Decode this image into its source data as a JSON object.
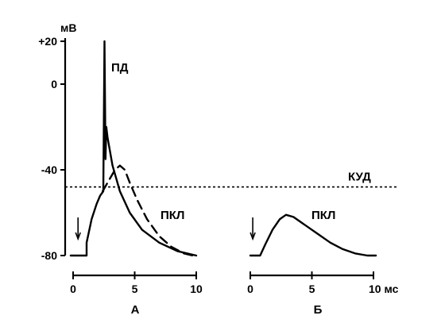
{
  "chart_data": [
    {
      "panel": "A",
      "type": "line",
      "ylabel": "мВ",
      "y_ticks": [
        "+20",
        "0",
        "-40",
        "-80"
      ],
      "x_ticks": [
        "0",
        "5",
        "10"
      ],
      "xlabel": "",
      "panel_label": "А",
      "ylim": [
        -80,
        20
      ],
      "xlim": [
        0,
        10
      ],
      "threshold": {
        "label": "КУД",
        "value": -48
      },
      "stimulus_time": 0.4,
      "series": [
        {
          "name": "ПД",
          "style": "solid",
          "x": [
            -0.2,
            1.1,
            1.1,
            1.5,
            1.9,
            2.2,
            2.45,
            2.55,
            2.63,
            2.7,
            2.8,
            3.2,
            3.8,
            4.6,
            5.6,
            7.0,
            8.5,
            10.0
          ],
          "y": [
            -80,
            -80,
            -74,
            -63,
            -56,
            -52,
            -50,
            20,
            -35,
            -20,
            -25,
            -38,
            -50,
            -60,
            -68,
            -74,
            -78,
            -80
          ]
        },
        {
          "name": "ПКЛ",
          "style": "dashed",
          "x": [
            2.4,
            2.9,
            3.4,
            3.8,
            4.2,
            4.6,
            5.2,
            6.0,
            7.0,
            8.0,
            9.0,
            9.7
          ],
          "y": [
            -50,
            -45,
            -40,
            -38,
            -40,
            -46,
            -54,
            -63,
            -71,
            -76,
            -79,
            -80
          ]
        }
      ]
    },
    {
      "panel": "Б",
      "type": "line",
      "x_ticks": [
        "0",
        "5",
        "10 мс"
      ],
      "panel_label": "Б",
      "ylim": [
        -80,
        20
      ],
      "xlim": [
        0,
        10
      ],
      "stimulus_time": 0.2,
      "series": [
        {
          "name": "ПКЛ",
          "style": "solid",
          "x": [
            0,
            0.8,
            1.2,
            1.8,
            2.4,
            2.9,
            3.5,
            4.5,
            5.5,
            6.5,
            7.5,
            8.5,
            9.5,
            10.2
          ],
          "y": [
            -80,
            -80,
            -75,
            -68,
            -63,
            -61,
            -62,
            -66,
            -70,
            -74,
            -77,
            -79,
            -80,
            -80
          ]
        }
      ]
    }
  ]
}
